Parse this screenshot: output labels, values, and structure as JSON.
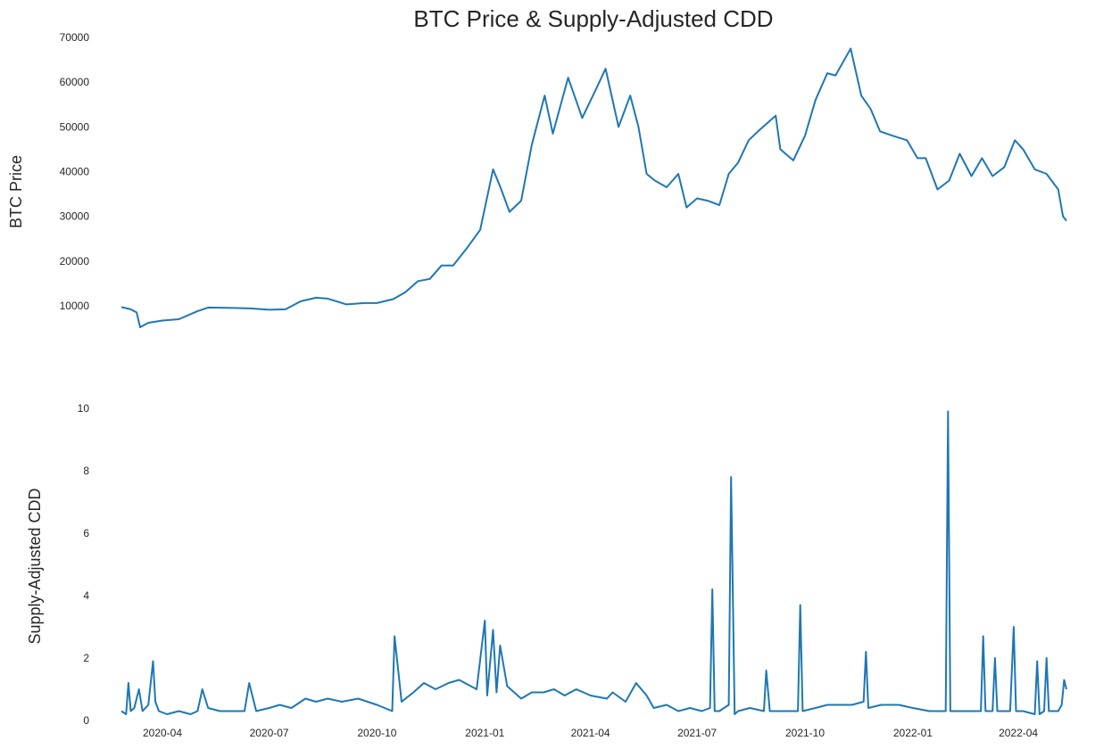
{
  "title": "BTC Price & Supply-Adjusted CDD",
  "chart_data": [
    {
      "type": "line",
      "panel": "top",
      "ylabel": "BTC  Price",
      "xlabel": "",
      "grid": false,
      "xlim": [
        "2020-02-26",
        "2022-05-12"
      ],
      "ylim": [
        4000,
        70000
      ],
      "yticks": [
        10000,
        20000,
        30000,
        40000,
        50000,
        60000,
        70000
      ],
      "line_color": "#1f77b4",
      "series": [
        {
          "x": [
            "2020-02-26",
            "2020-03-05",
            "2020-03-10",
            "2020-03-13",
            "2020-03-20",
            "2020-04-01",
            "2020-04-15",
            "2020-05-01",
            "2020-05-10",
            "2020-06-01",
            "2020-06-15",
            "2020-07-01",
            "2020-07-15",
            "2020-07-28",
            "2020-08-10",
            "2020-08-20",
            "2020-09-05",
            "2020-09-20",
            "2020-10-01",
            "2020-10-15",
            "2020-10-25",
            "2020-11-05",
            "2020-11-15",
            "2020-11-25",
            "2020-12-05",
            "2020-12-17",
            "2020-12-28",
            "2021-01-08",
            "2021-01-15",
            "2021-01-22",
            "2021-02-01",
            "2021-02-10",
            "2021-02-21",
            "2021-02-28",
            "2021-03-13",
            "2021-03-25",
            "2021-04-05",
            "2021-04-14",
            "2021-04-25",
            "2021-05-05",
            "2021-05-12",
            "2021-05-19",
            "2021-05-26",
            "2021-06-05",
            "2021-06-15",
            "2021-06-22",
            "2021-07-01",
            "2021-07-10",
            "2021-07-20",
            "2021-07-28",
            "2021-08-05",
            "2021-08-14",
            "2021-08-22",
            "2021-09-06",
            "2021-09-10",
            "2021-09-21",
            "2021-10-01",
            "2021-10-10",
            "2021-10-20",
            "2021-10-27",
            "2021-11-09",
            "2021-11-18",
            "2021-11-26",
            "2021-12-04",
            "2021-12-15",
            "2021-12-27",
            "2022-01-05",
            "2022-01-12",
            "2022-01-22",
            "2022-02-01",
            "2022-02-10",
            "2022-02-20",
            "2022-03-01",
            "2022-03-10",
            "2022-03-20",
            "2022-03-29",
            "2022-04-05",
            "2022-04-15",
            "2022-04-25",
            "2022-05-05",
            "2022-05-09",
            "2022-05-12"
          ],
          "y": [
            9700,
            9200,
            8500,
            5200,
            6200,
            6700,
            7000,
            8800,
            9600,
            9500,
            9400,
            9100,
            9200,
            11000,
            11800,
            11600,
            10300,
            10600,
            10600,
            11500,
            13000,
            15500,
            16000,
            19000,
            19000,
            23000,
            27000,
            40500,
            36000,
            31000,
            33500,
            46000,
            57000,
            48500,
            61000,
            52000,
            58000,
            63000,
            50000,
            57000,
            50000,
            39500,
            38000,
            36500,
            39500,
            32000,
            34000,
            33500,
            32500,
            39500,
            42000,
            47000,
            49000,
            52500,
            45000,
            42500,
            48000,
            56000,
            62000,
            61500,
            67500,
            57000,
            54000,
            49000,
            48000,
            47000,
            43000,
            43000,
            36000,
            38000,
            44000,
            39000,
            43000,
            39000,
            41000,
            47000,
            45000,
            40500,
            39500,
            36000,
            30000,
            29000
          ]
        }
      ]
    },
    {
      "type": "line",
      "panel": "bottom",
      "ylabel": "Supply-Adjusted CDD",
      "xlabel": "",
      "grid": false,
      "xlim": [
        "2020-02-26",
        "2022-05-12"
      ],
      "ylim": [
        0,
        10
      ],
      "yticks": [
        0,
        2,
        4,
        6,
        8,
        10
      ],
      "xticks": [
        "2020-04",
        "2020-07",
        "2020-10",
        "2021-01",
        "2021-04",
        "2021-07",
        "2021-10",
        "2022-01",
        "2022-04"
      ],
      "line_color": "#1f77b4",
      "series": [
        {
          "x": [
            "2020-02-26",
            "2020-03-01",
            "2020-03-03",
            "2020-03-05",
            "2020-03-08",
            "2020-03-12",
            "2020-03-15",
            "2020-03-20",
            "2020-03-24",
            "2020-03-26",
            "2020-03-29",
            "2020-04-05",
            "2020-04-15",
            "2020-04-25",
            "2020-05-01",
            "2020-05-05",
            "2020-05-10",
            "2020-05-20",
            "2020-06-01",
            "2020-06-10",
            "2020-06-14",
            "2020-06-20",
            "2020-07-01",
            "2020-07-10",
            "2020-07-20",
            "2020-08-01",
            "2020-08-10",
            "2020-08-20",
            "2020-09-01",
            "2020-09-15",
            "2020-10-01",
            "2020-10-14",
            "2020-10-16",
            "2020-10-22",
            "2020-11-01",
            "2020-11-10",
            "2020-11-20",
            "2020-12-01",
            "2020-12-10",
            "2020-12-20",
            "2020-12-25",
            "2021-01-01",
            "2021-01-03",
            "2021-01-08",
            "2021-01-11",
            "2021-01-14",
            "2021-01-20",
            "2021-02-01",
            "2021-02-10",
            "2021-02-20",
            "2021-03-01",
            "2021-03-10",
            "2021-03-20",
            "2021-04-01",
            "2021-04-15",
            "2021-04-20",
            "2021-05-01",
            "2021-05-10",
            "2021-05-19",
            "2021-05-25",
            "2021-06-05",
            "2021-06-15",
            "2021-06-25",
            "2021-07-05",
            "2021-07-12",
            "2021-07-14",
            "2021-07-16",
            "2021-07-20",
            "2021-07-28",
            "2021-07-30",
            "2021-08-02",
            "2021-08-05",
            "2021-08-15",
            "2021-08-27",
            "2021-08-29",
            "2021-09-01",
            "2021-09-15",
            "2021-09-25",
            "2021-09-27",
            "2021-09-29",
            "2021-10-10",
            "2021-10-20",
            "2021-11-01",
            "2021-11-10",
            "2021-11-20",
            "2021-11-22",
            "2021-11-24",
            "2021-12-05",
            "2021-12-20",
            "2022-01-01",
            "2022-01-15",
            "2022-01-29",
            "2022-01-31",
            "2022-02-02",
            "2022-02-10",
            "2022-02-20",
            "2022-02-28",
            "2022-03-02",
            "2022-03-04",
            "2022-03-10",
            "2022-03-12",
            "2022-03-14",
            "2022-03-25",
            "2022-03-28",
            "2022-03-30",
            "2022-04-05",
            "2022-04-15",
            "2022-04-17",
            "2022-04-19",
            "2022-04-23",
            "2022-04-25",
            "2022-04-27",
            "2022-05-05",
            "2022-05-08",
            "2022-05-10",
            "2022-05-12"
          ],
          "y": [
            0.3,
            0.2,
            1.2,
            0.3,
            0.4,
            1.0,
            0.3,
            0.5,
            1.9,
            0.6,
            0.3,
            0.2,
            0.3,
            0.2,
            0.3,
            1.0,
            0.4,
            0.3,
            0.3,
            0.3,
            1.2,
            0.3,
            0.4,
            0.5,
            0.4,
            0.7,
            0.6,
            0.7,
            0.6,
            0.7,
            0.5,
            0.3,
            2.7,
            0.6,
            0.9,
            1.2,
            1.0,
            1.2,
            1.3,
            1.1,
            1.0,
            3.2,
            0.8,
            2.9,
            0.9,
            2.4,
            1.1,
            0.7,
            0.9,
            0.9,
            1.0,
            0.8,
            1.0,
            0.8,
            0.7,
            0.9,
            0.6,
            1.2,
            0.8,
            0.4,
            0.5,
            0.3,
            0.4,
            0.3,
            0.4,
            4.2,
            0.3,
            0.3,
            0.5,
            7.8,
            0.2,
            0.3,
            0.4,
            0.3,
            1.6,
            0.3,
            0.3,
            0.3,
            3.7,
            0.3,
            0.4,
            0.5,
            0.5,
            0.5,
            0.6,
            2.2,
            0.4,
            0.5,
            0.5,
            0.4,
            0.3,
            0.3,
            9.9,
            0.3,
            0.3,
            0.3,
            0.3,
            2.7,
            0.3,
            0.3,
            2.0,
            0.3,
            0.3,
            3.0,
            0.3,
            0.3,
            0.2,
            1.9,
            0.2,
            0.3,
            2.0,
            0.3,
            0.3,
            0.5,
            1.3,
            1.0
          ]
        }
      ]
    }
  ]
}
